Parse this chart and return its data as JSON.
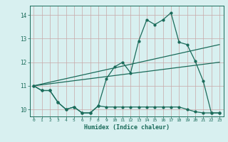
{
  "title": "",
  "xlabel": "Humidex (Indice chaleur)",
  "bg_color": "#d8f0f0",
  "grid_color": "#c8a8a8",
  "line_color": "#1a6b5a",
  "xlim": [
    -0.5,
    23.5
  ],
  "ylim": [
    9.7,
    14.4
  ],
  "yticks": [
    10,
    11,
    12,
    13,
    14
  ],
  "xticks": [
    0,
    1,
    2,
    3,
    4,
    5,
    6,
    7,
    8,
    9,
    10,
    11,
    12,
    13,
    14,
    15,
    16,
    17,
    18,
    19,
    20,
    21,
    22,
    23
  ],
  "series1_x": [
    0,
    1,
    2,
    3,
    4,
    5,
    6,
    7,
    8,
    9,
    10,
    11,
    12,
    13,
    14,
    15,
    16,
    17,
    18,
    19,
    20,
    21,
    22,
    23
  ],
  "series1_y": [
    11.0,
    10.8,
    10.8,
    10.3,
    10.0,
    10.1,
    9.85,
    9.85,
    10.15,
    10.1,
    10.1,
    10.1,
    10.1,
    10.1,
    10.1,
    10.1,
    10.1,
    10.1,
    10.1,
    10.0,
    9.9,
    9.85,
    9.85,
    9.85
  ],
  "series2_x": [
    0,
    1,
    2,
    3,
    4,
    5,
    6,
    7,
    8,
    9,
    10,
    11,
    12,
    13,
    14,
    15,
    16,
    17,
    18,
    19,
    20,
    21,
    22,
    23
  ],
  "series2_y": [
    11.0,
    10.8,
    10.8,
    10.3,
    10.0,
    10.1,
    9.85,
    9.85,
    10.15,
    11.3,
    11.8,
    12.0,
    11.55,
    12.9,
    13.8,
    13.6,
    13.8,
    14.1,
    12.85,
    12.75,
    12.05,
    11.2,
    9.85,
    9.85
  ],
  "series3_x": [
    0,
    23
  ],
  "series3_y": [
    11.0,
    12.75
  ],
  "series4_x": [
    0,
    23
  ],
  "series4_y": [
    11.0,
    12.0
  ]
}
